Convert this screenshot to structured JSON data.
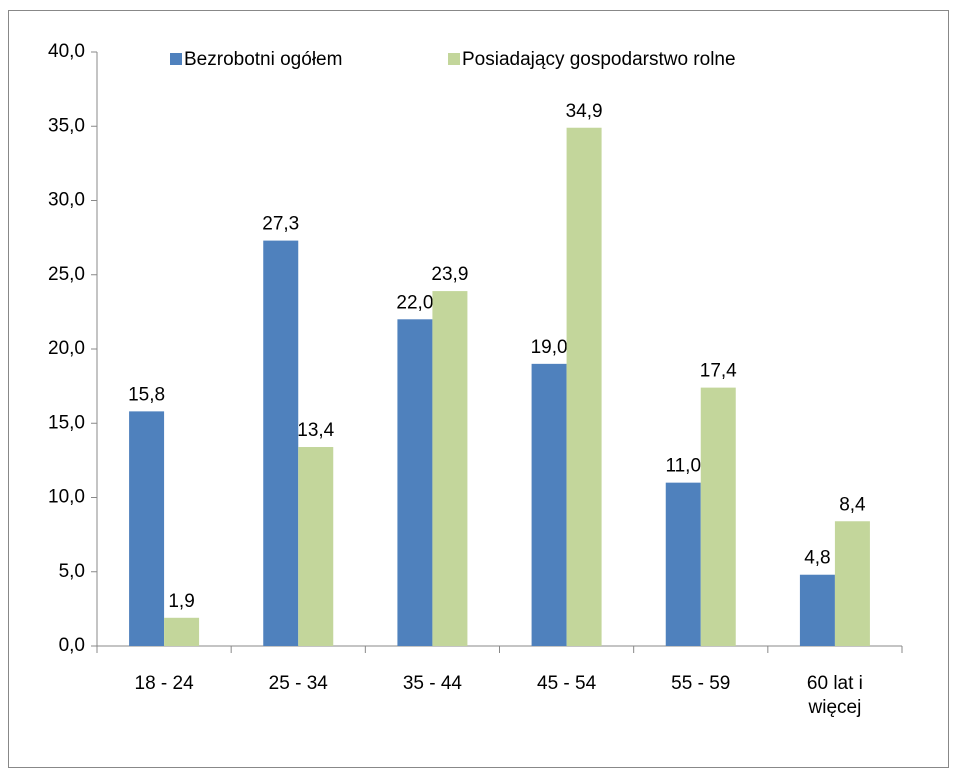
{
  "chart_data": {
    "type": "bar",
    "categories": [
      "18 - 24",
      "25 - 34",
      "35 - 44",
      "45 - 54",
      "55 - 59",
      "60 lat i więcej"
    ],
    "series": [
      {
        "name": "Bezrobotni ogółem",
        "color": "#4f81bd",
        "values": [
          15.8,
          27.3,
          22.0,
          19.0,
          11.0,
          4.8
        ],
        "value_labels": [
          "15,8",
          "27,3",
          "22,0",
          "19,0",
          "11,0",
          "4,8"
        ]
      },
      {
        "name": "Posiadający gospodarstwo  rolne",
        "color": "#c3d69b",
        "values": [
          1.9,
          13.4,
          23.9,
          34.9,
          17.4,
          8.4
        ],
        "value_labels": [
          "1,9",
          "13,4",
          "23,9",
          "34,9",
          "17,4",
          "8,4"
        ]
      }
    ],
    "ylim": [
      0,
      40
    ],
    "yticks": [
      {
        "value": 0,
        "label": "0,0"
      },
      {
        "value": 5,
        "label": "5,0"
      },
      {
        "value": 10,
        "label": "10,0"
      },
      {
        "value": 15,
        "label": "15,0"
      },
      {
        "value": 20,
        "label": "20,0"
      },
      {
        "value": 25,
        "label": "25,0"
      },
      {
        "value": 30,
        "label": "30,0"
      },
      {
        "value": 35,
        "label": "35,0"
      },
      {
        "value": 40,
        "label": "40,0"
      }
    ],
    "grid": false,
    "legend": "top"
  }
}
